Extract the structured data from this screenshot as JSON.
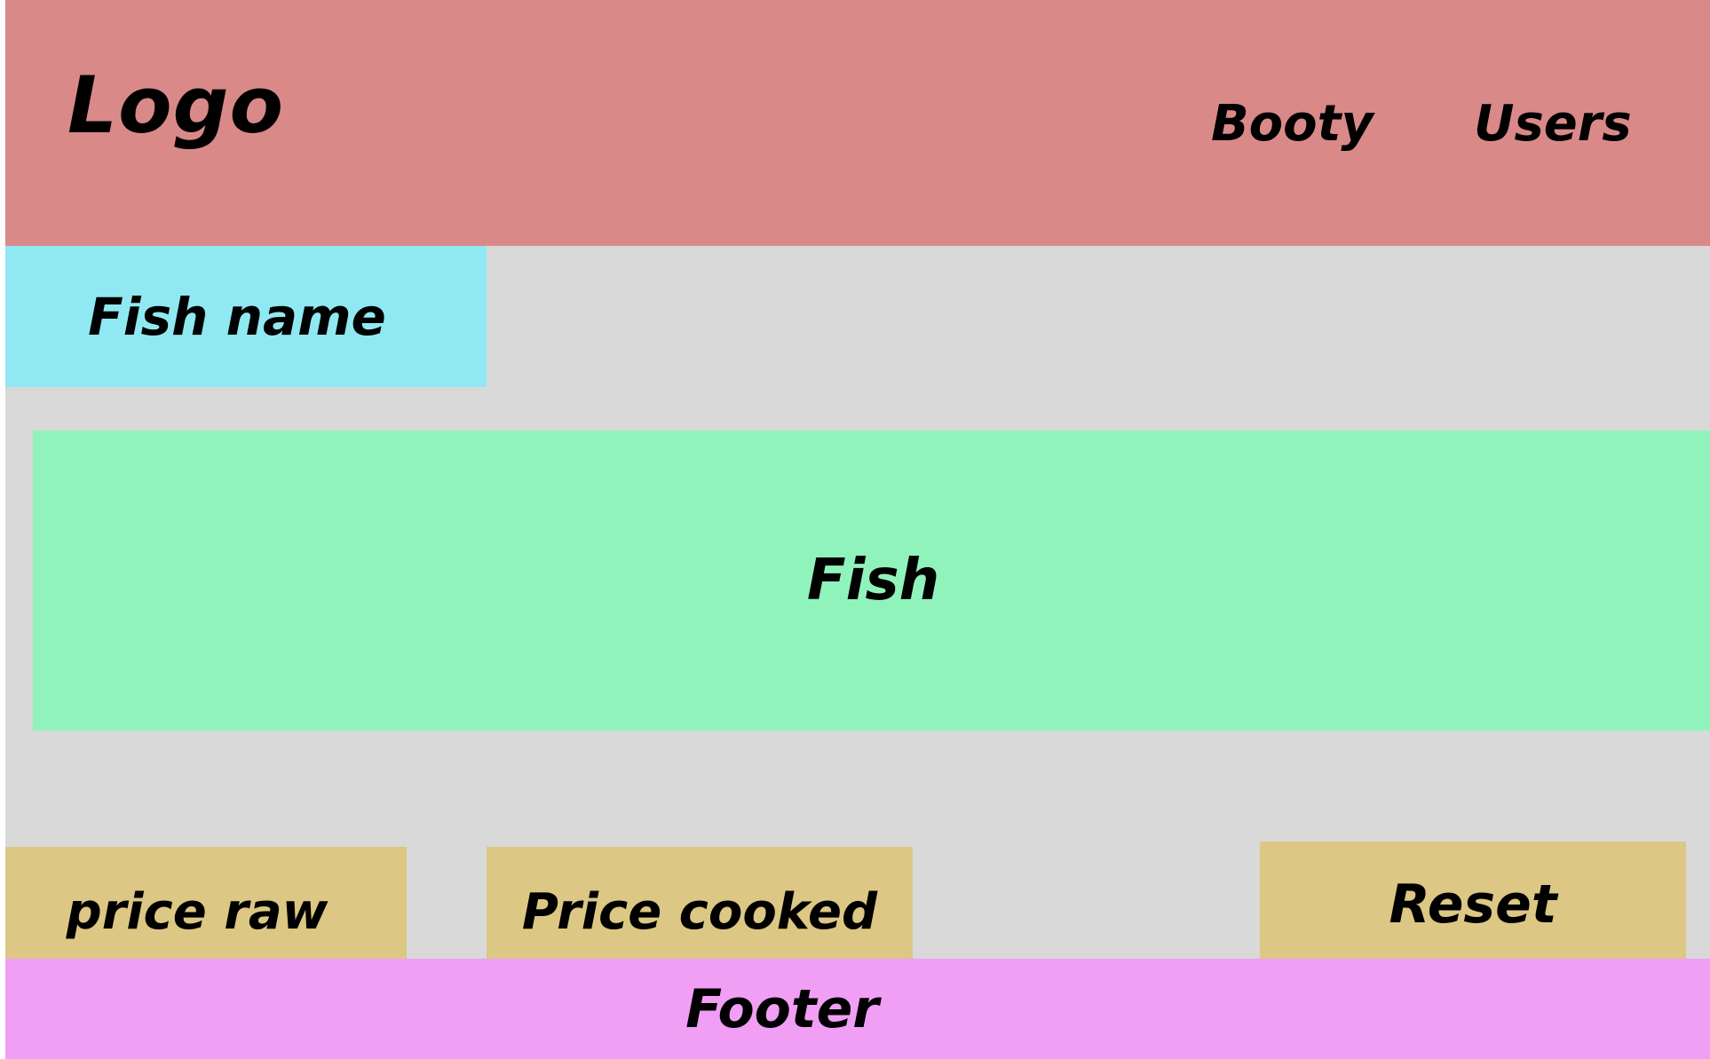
{
  "header": {
    "logo": "Logo",
    "nav": [
      "Booty",
      "Users"
    ]
  },
  "fish_name": "Fish name",
  "fish": "Fish",
  "prices": {
    "raw": "price raw",
    "cooked": "Price cooked"
  },
  "reset": "Reset",
  "footer": "Footer",
  "colors": {
    "header": "#da8989",
    "fish_name": "#90e9f2",
    "fish": "#91f3bc",
    "buttons": "#dcc784",
    "footer": "#f09ff5",
    "background": "#d9d9d9"
  }
}
